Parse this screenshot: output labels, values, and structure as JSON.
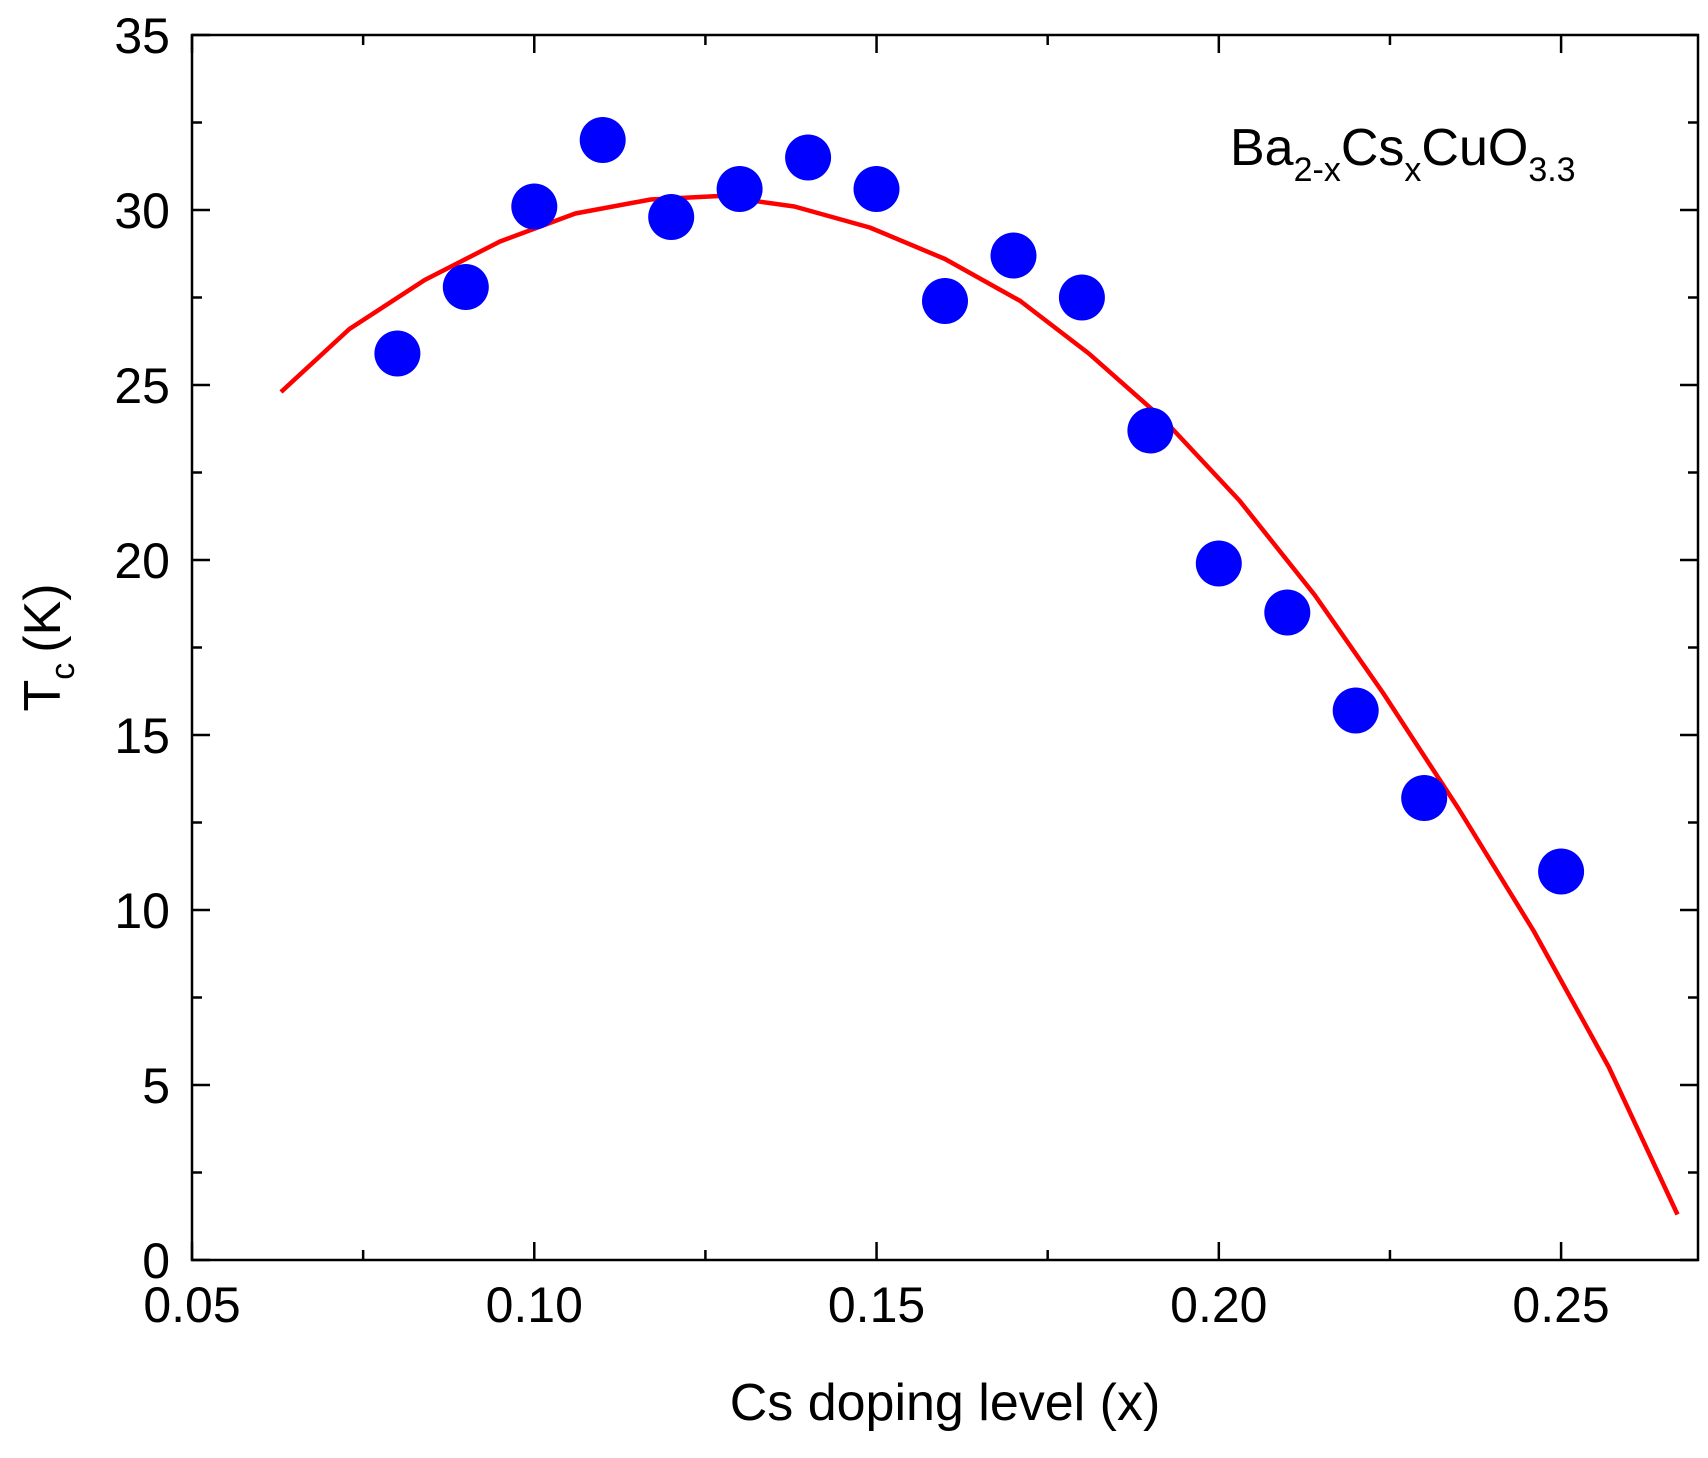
{
  "chart_data": {
    "type": "scatter",
    "xlabel": "Cs doping level (x)",
    "ylabel": {
      "main": "T",
      "sub": "c",
      "unit": "(K)"
    },
    "xlim": [
      0.05,
      0.27
    ],
    "ylim": [
      0,
      35
    ],
    "x_ticks": [
      0.05,
      0.1,
      0.15,
      0.2,
      0.25
    ],
    "x_tick_labels": [
      "0.05",
      "0.10",
      "0.15",
      "0.20",
      "0.25"
    ],
    "x_minor_ticks": [
      0.075,
      0.125,
      0.175,
      0.225
    ],
    "y_ticks": [
      0,
      5,
      10,
      15,
      20,
      25,
      30,
      35
    ],
    "y_tick_labels": [
      "0",
      "5",
      "10",
      "15",
      "20",
      "25",
      "30",
      "35"
    ],
    "y_minor_ticks": [
      2.5,
      7.5,
      12.5,
      17.5,
      22.5,
      27.5,
      32.5
    ],
    "annotation": {
      "parts": [
        {
          "text": "Ba",
          "sub": false
        },
        {
          "text": "2-x",
          "sub": true
        },
        {
          "text": "Cs",
          "sub": false
        },
        {
          "text": "x",
          "sub": true
        },
        {
          "text": "CuO",
          "sub": false
        },
        {
          "text": "3.3",
          "sub": true
        }
      ],
      "position": "top-right"
    },
    "grid": false,
    "legend": "none",
    "series": [
      {
        "type": "scatter",
        "color": "#0000ff",
        "x": [
          0.08,
          0.09,
          0.1,
          0.11,
          0.12,
          0.13,
          0.14,
          0.15,
          0.16,
          0.17,
          0.18,
          0.19,
          0.2,
          0.21,
          0.22,
          0.23,
          0.25
        ],
        "y": [
          25.9,
          27.8,
          30.1,
          32.0,
          29.8,
          30.6,
          31.5,
          30.6,
          27.4,
          28.7,
          27.5,
          23.7,
          19.9,
          18.5,
          15.7,
          13.2,
          11.1
        ]
      },
      {
        "type": "line",
        "color": "#ff0000",
        "x": [
          0.063,
          0.073,
          0.084,
          0.095,
          0.106,
          0.117,
          0.127,
          0.138,
          0.149,
          0.16,
          0.171,
          0.181,
          0.192,
          0.203,
          0.214,
          0.224,
          0.235,
          0.246,
          0.257,
          0.267
        ],
        "y": [
          24.8,
          26.6,
          28.0,
          29.1,
          29.9,
          30.3,
          30.4,
          30.1,
          29.5,
          28.6,
          27.4,
          25.9,
          24.0,
          21.7,
          19.0,
          16.2,
          12.9,
          9.4,
          5.5,
          1.3
        ]
      }
    ]
  }
}
